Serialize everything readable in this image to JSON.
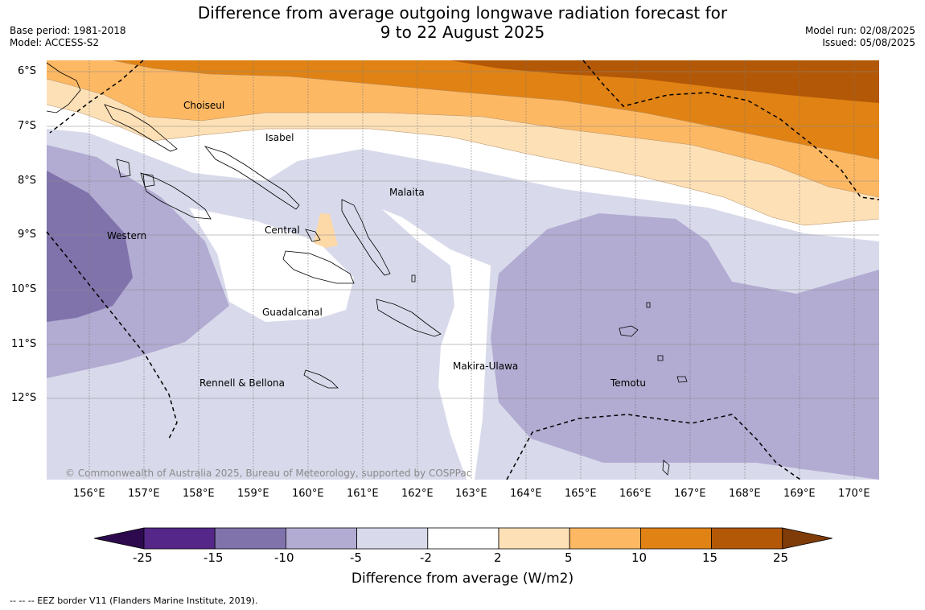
{
  "header": {
    "title_line1": "Difference from average outgoing longwave radiation forecast for",
    "title_line2": "9 to 22 August 2025",
    "base_period": "Base period: 1981-2018",
    "model": "Model: ACCESS-S2",
    "model_run": "Model run: 02/08/2025",
    "issued": "Issued: 05/08/2025"
  },
  "map": {
    "lat_labels": [
      "6°S",
      "7°S",
      "8°S",
      "9°S",
      "10°S",
      "11°S",
      "12°S"
    ],
    "lon_labels": [
      "156°E",
      "157°E",
      "158°E",
      "159°E",
      "160°E",
      "161°E",
      "162°E",
      "163°E",
      "164°E",
      "165°E",
      "166°E",
      "167°E",
      "168°E",
      "169°E",
      "170°E"
    ],
    "provinces": [
      "Choiseul",
      "Isabel",
      "Malaita",
      "Western",
      "Central",
      "Guadalcanal",
      "Makira-Ulawa",
      "Rennell & Bellona",
      "Temotu"
    ],
    "copyright": "© Commonwealth of Australia 2025, Bureau of Meteorology, supported by COSPPac"
  },
  "colorbar": {
    "ticks": [
      "-25",
      "-15",
      "-10",
      "-5",
      "-2",
      "2",
      "5",
      "10",
      "15",
      "25"
    ],
    "colors": [
      "#2d0a4e",
      "#542788",
      "#8073ac",
      "#b2abd2",
      "#d8daeb",
      "#ffffff",
      "#fee0b6",
      "#fdb863",
      "#e08214",
      "#b35806",
      "#7f3b08"
    ],
    "title": "Difference from average (W/m2)"
  },
  "footnote": "--  --  -- EEZ border V11 (Flanders Marine Institute, 2019)."
}
